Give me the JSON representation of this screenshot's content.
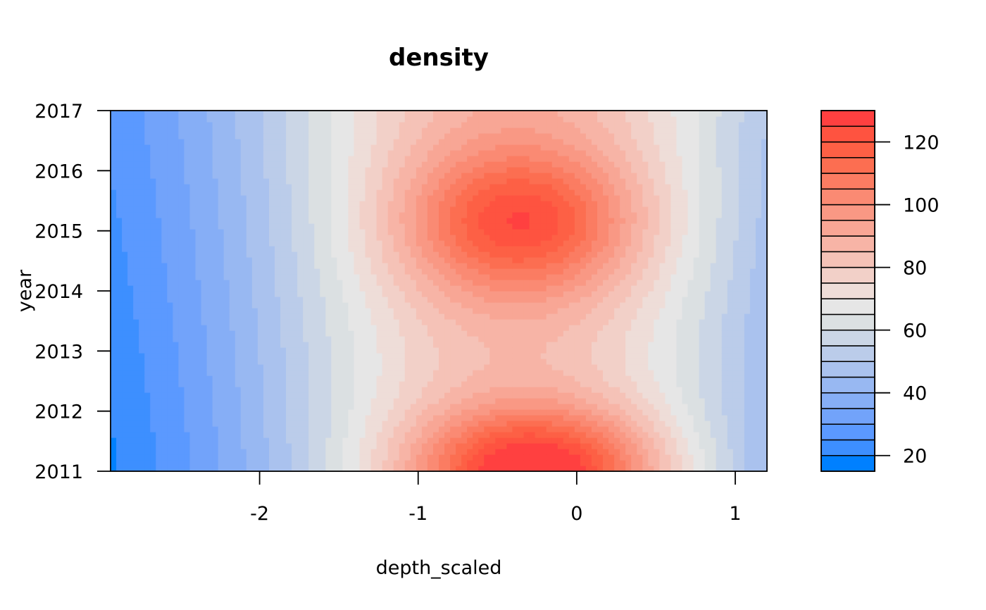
{
  "chart_data": {
    "type": "heatmap",
    "title": "density",
    "xlabel": "depth_scaled",
    "ylabel": "year",
    "xlim": [
      -2.94,
      1.2
    ],
    "ylim": [
      2011,
      2017
    ],
    "x_ticks": [
      -2,
      -1,
      0,
      1
    ],
    "x_tick_labels": [
      "-2",
      "-1",
      "0",
      "1"
    ],
    "y_ticks": [
      2011,
      2012,
      2013,
      2014,
      2015,
      2016,
      2017
    ],
    "y_tick_labels": [
      "2011",
      "2012",
      "2013",
      "2014",
      "2015",
      "2016",
      "2017"
    ],
    "levels": [
      15,
      20,
      25,
      30,
      35,
      40,
      45,
      50,
      55,
      60,
      65,
      70,
      75,
      80,
      85,
      90,
      95,
      100,
      105,
      110,
      115,
      120,
      125,
      130
    ],
    "colorbar_ticks": [
      20,
      40,
      60,
      80,
      100,
      120
    ],
    "colorbar_tick_labels": [
      "20",
      "40",
      "60",
      "80",
      "100",
      "120"
    ],
    "colors": [
      "#0080FF",
      "#3D8FFF",
      "#5B99FF",
      "#72A3FA",
      "#86AEF6",
      "#98B8F2",
      "#AAC2EE",
      "#BBCCEA",
      "#CBD6E6",
      "#DBE0E2",
      "#E6E6E6",
      "#EEDDD8",
      "#F2D0C8",
      "#F5C2B7",
      "#F7B4A6",
      "#F8A695",
      "#F99884",
      "#FA8A73",
      "#FB7C62",
      "#FC6E51",
      "#FD6045",
      "#FE5340",
      "#FF4040"
    ],
    "model": {
      "baseline_depth_center": -0.4,
      "peaks": [
        {
          "year": 2011,
          "depth": -0.25,
          "value": 120
        },
        {
          "year": 2015.15,
          "depth": -0.35,
          "value": 107
        }
      ]
    }
  }
}
